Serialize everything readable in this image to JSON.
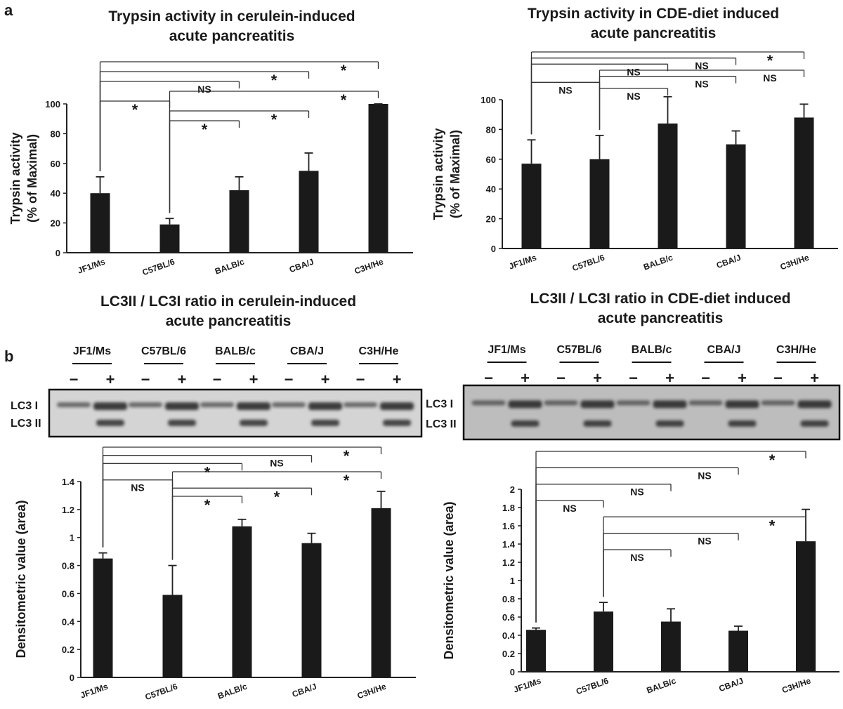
{
  "panel_labels": [
    "a",
    "b"
  ],
  "blots": [
    {
      "strains": [
        "JF1/Ms",
        "C57BL/6",
        "BALB/c",
        "CBA/J",
        "C3H/He"
      ],
      "treatment": [
        "−",
        "+"
      ],
      "bands": [
        "LC3 I",
        "LC3 II"
      ]
    },
    {
      "strains": [
        "JF1/Ms",
        "C57BL/6",
        "BALB/c",
        "CBA/J",
        "C3H/He"
      ],
      "treatment": [
        "−",
        "+"
      ],
      "bands": [
        "LC3 I",
        "LC3 II"
      ]
    }
  ],
  "chart_data": [
    {
      "type": "bar",
      "title": [
        "Trypsin activity in cerulein-induced",
        "acute pancreatitis"
      ],
      "ylabel": [
        "Trypsin activity",
        "(% of Maximal)"
      ],
      "categories": [
        "JF1/Ms",
        "C57BL/6",
        "BALB/c",
        "CBA/J",
        "C3H/He"
      ],
      "values": [
        40,
        19,
        42,
        55,
        100
      ],
      "errors": [
        11,
        4,
        9,
        12,
        0
      ],
      "color": "#1a1a1a",
      "ylim": [
        0,
        100
      ],
      "yticks": [
        0,
        20,
        40,
        60,
        80,
        100
      ],
      "brackets": [
        {
          "pair": [
            "C57BL/6",
            "BALB/c"
          ],
          "label": "*"
        },
        {
          "pair": [
            "C57BL/6",
            "CBA/J"
          ],
          "label": "*"
        },
        {
          "pair": [
            "JF1/Ms",
            "C57BL/6"
          ],
          "label": "*"
        },
        {
          "pair": [
            "C57BL/6",
            "C3H/He"
          ],
          "label": "*"
        },
        {
          "pair": [
            "JF1/Ms",
            "BALB/c"
          ],
          "label": "NS"
        },
        {
          "pair": [
            "JF1/Ms",
            "CBA/J"
          ],
          "label": "*"
        },
        {
          "pair": [
            "JF1/Ms",
            "C3H/He"
          ],
          "label": "*"
        }
      ]
    },
    {
      "type": "bar",
      "title": [
        "Trypsin activity in CDE-diet induced",
        "acute pancreatitis"
      ],
      "ylabel": [
        "Trypsin activity",
        "(% of Maximal)"
      ],
      "categories": [
        "JF1/Ms",
        "C57BL/6",
        "BALB/c",
        "CBA/J",
        "C3H/He"
      ],
      "values": [
        57,
        60,
        84,
        70,
        88
      ],
      "errors": [
        16,
        16,
        18,
        9,
        9
      ],
      "color": "#1a1a1a",
      "ylim": [
        0,
        100
      ],
      "yticks": [
        0,
        20,
        40,
        60,
        80,
        100
      ],
      "brackets": [
        {
          "pair": [
            "C57BL/6",
            "BALB/c"
          ],
          "label": "NS"
        },
        {
          "pair": [
            "JF1/Ms",
            "C57BL/6"
          ],
          "label": "NS"
        },
        {
          "pair": [
            "C57BL/6",
            "CBA/J"
          ],
          "label": "NS"
        },
        {
          "pair": [
            "C57BL/6",
            "C3H/He"
          ],
          "label": "NS"
        },
        {
          "pair": [
            "JF1/Ms",
            "BALB/c"
          ],
          "label": "NS"
        },
        {
          "pair": [
            "JF1/Ms",
            "CBA/J"
          ],
          "label": "NS"
        },
        {
          "pair": [
            "JF1/Ms",
            "C3H/He"
          ],
          "label": "*"
        }
      ]
    },
    {
      "type": "bar",
      "title": [
        "LC3II / LC3I ratio in cerulein-induced",
        "acute pancreatitis"
      ],
      "ylabel": [
        "Densitometric value (area)"
      ],
      "categories": [
        "JF1/Ms",
        "C57BL/6",
        "BALB/c",
        "CBA/J",
        "C3H/He"
      ],
      "values": [
        0.85,
        0.59,
        1.08,
        0.96,
        1.21
      ],
      "errors": [
        0.04,
        0.21,
        0.05,
        0.07,
        0.12
      ],
      "color": "#1a1a1a",
      "ylim": [
        0,
        1.4
      ],
      "yticks": [
        0,
        0.2,
        0.4,
        0.6,
        0.8,
        1,
        1.2,
        1.4
      ],
      "brackets": [
        {
          "pair": [
            "C57BL/6",
            "BALB/c"
          ],
          "label": "*"
        },
        {
          "pair": [
            "C57BL/6",
            "CBA/J"
          ],
          "label": "*"
        },
        {
          "pair": [
            "JF1/Ms",
            "C57BL/6"
          ],
          "label": "NS"
        },
        {
          "pair": [
            "C57BL/6",
            "C3H/He"
          ],
          "label": "*"
        },
        {
          "pair": [
            "JF1/Ms",
            "BALB/c"
          ],
          "label": "*"
        },
        {
          "pair": [
            "JF1/Ms",
            "CBA/J"
          ],
          "label": "NS"
        },
        {
          "pair": [
            "JF1/Ms",
            "C3H/He"
          ],
          "label": "*"
        }
      ]
    },
    {
      "type": "bar",
      "title": [
        "LC3II / LC3I ratio in CDE-diet induced",
        "acute pancreatitis"
      ],
      "ylabel": [
        "Densitometric value (area)"
      ],
      "categories": [
        "JF1/Ms",
        "C57BL/6",
        "BALB/c",
        "CBA/J",
        "C3H/He"
      ],
      "values": [
        0.46,
        0.66,
        0.55,
        0.45,
        1.43
      ],
      "errors": [
        0.02,
        0.1,
        0.14,
        0.05,
        0.35
      ],
      "color": "#1a1a1a",
      "ylim": [
        0,
        2
      ],
      "yticks": [
        0,
        0.2,
        0.4,
        0.6,
        0.8,
        1,
        1.2,
        1.4,
        1.6,
        1.8,
        2
      ],
      "brackets": [
        {
          "pair": [
            "C57BL/6",
            "BALB/c"
          ],
          "label": "NS"
        },
        {
          "pair": [
            "C57BL/6",
            "CBA/J"
          ],
          "label": "NS"
        },
        {
          "pair": [
            "C57BL/6",
            "C3H/He"
          ],
          "label": "*"
        },
        {
          "pair": [
            "JF1/Ms",
            "C57BL/6"
          ],
          "label": "NS"
        },
        {
          "pair": [
            "JF1/Ms",
            "BALB/c"
          ],
          "label": "NS"
        },
        {
          "pair": [
            "JF1/Ms",
            "CBA/J"
          ],
          "label": "NS"
        },
        {
          "pair": [
            "JF1/Ms",
            "C3H/He"
          ],
          "label": "*"
        }
      ]
    }
  ]
}
